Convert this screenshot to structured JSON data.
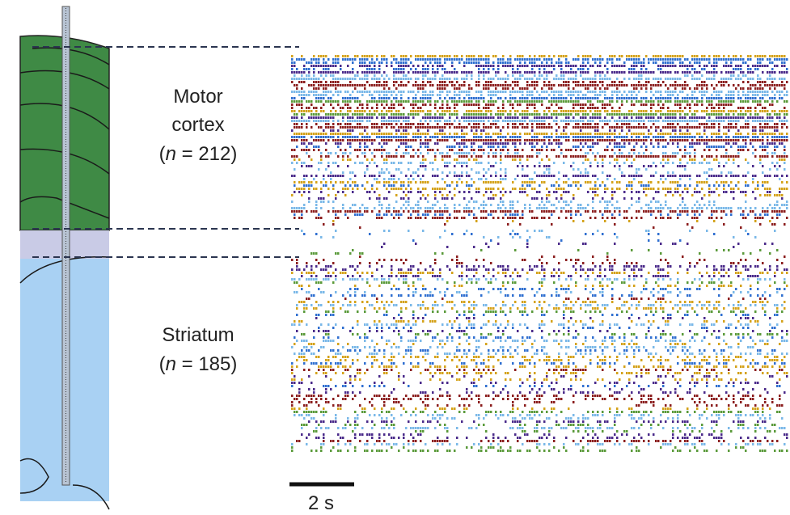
{
  "regions": [
    {
      "name_lines": [
        "Motor",
        "cortex"
      ],
      "count": {
        "open": "(",
        "symbol": "n",
        "rest": " = 212)"
      }
    },
    {
      "name_lines": [
        "Striatum"
      ],
      "count": {
        "open": "(",
        "symbol": "n",
        "rest": " = 185)"
      }
    }
  ],
  "scale_bar": {
    "label": "2 s"
  }
}
